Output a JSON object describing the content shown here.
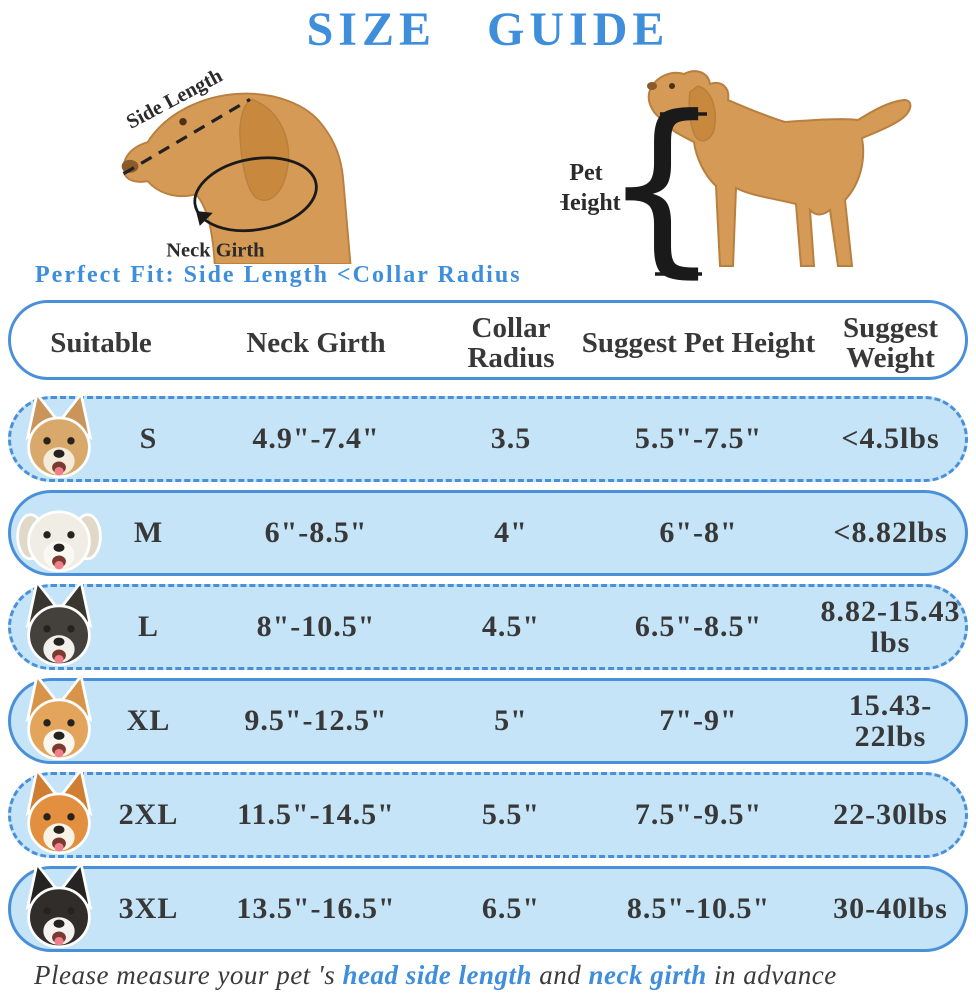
{
  "title": "SIZE  GUIDE",
  "colors": {
    "accent_blue": "#3E8EDC",
    "row_fill": "#C5E4F7",
    "row_border": "#4A90D8",
    "text_dark": "#383838",
    "illustration_tan": "#D59A55",
    "illustration_outline": "#B97F3F"
  },
  "diagram": {
    "side_length_label": "Side Length",
    "neck_girth_label": "Neck Girth",
    "pet_height_label_line1": "Pet",
    "pet_height_label_line2": "Height",
    "perfect_fit_note": "Perfect Fit: Side Length <Collar Radius"
  },
  "table": {
    "headers": {
      "suitable": "Suitable",
      "neck_girth": "Neck Girth",
      "collar_radius": "Collar Radius",
      "pet_height": "Suggest Pet Height",
      "weight": "Suggest Weight"
    },
    "rows": [
      {
        "size": "S",
        "breed": "chihuahua-photo",
        "neck_girth": "4.9\"-7.4\"",
        "collar_radius": "3.5",
        "pet_height": "5.5\"-7.5\"",
        "weight": "<4.5lbs",
        "photo": {
          "fur": "#D9A96B",
          "muzzle": "#F5EBDA",
          "ear": "#C9955B",
          "ear_style": "pointed"
        }
      },
      {
        "size": "M",
        "breed": "maltese-photo",
        "neck_girth": "6\"-8.5\"",
        "collar_radius": "4\"",
        "pet_height": "6\"-8\"",
        "weight": "<8.82lbs",
        "photo": {
          "fur": "#F0EDE4",
          "muzzle": "#FAF8F2",
          "ear": "#E0D9C8",
          "ear_style": "floppy"
        }
      },
      {
        "size": "L",
        "breed": "french-bulldog-photo",
        "neck_girth": "8\"-10.5\"",
        "collar_radius": "4.5\"",
        "pet_height": "6.5\"-8.5\"",
        "weight": "8.82-15.43 lbs",
        "photo": {
          "fur": "#44403C",
          "muzzle": "#F2F0EC",
          "ear": "#39352F",
          "ear_style": "pointed"
        }
      },
      {
        "size": "XL",
        "breed": "corgi-photo",
        "neck_girth": "9.5\"-12.5\"",
        "collar_radius": "5\"",
        "pet_height": "7\"-9\"",
        "weight": "15.43-22lbs",
        "photo": {
          "fur": "#E3A55C",
          "muzzle": "#FBF6EE",
          "ear": "#D89448",
          "ear_style": "pointed"
        }
      },
      {
        "size": "2XL",
        "breed": "shiba-inu-photo",
        "neck_girth": "11.5\"-14.5\"",
        "collar_radius": "5.5\"",
        "pet_height": "7.5\"-9.5\"",
        "weight": "22-30lbs",
        "photo": {
          "fur": "#E28F3F",
          "muzzle": "#F9F2E6",
          "ear": "#D07F32",
          "ear_style": "pointed"
        }
      },
      {
        "size": "3XL",
        "breed": "border-collie-photo",
        "neck_girth": "13.5\"-16.5\"",
        "collar_radius": "6.5\"",
        "pet_height": "8.5\"-10.5\"",
        "weight": "30-40lbs",
        "photo": {
          "fur": "#302D2B",
          "muzzle": "#F5F3F0",
          "ear": "#262422",
          "ear_style": "pointed"
        }
      }
    ]
  },
  "footer": {
    "prefix": "Please measure your pet 's ",
    "highlight1": "head side length",
    "middle": " and ",
    "highlight2": "neck girth",
    "suffix": " in advance"
  }
}
